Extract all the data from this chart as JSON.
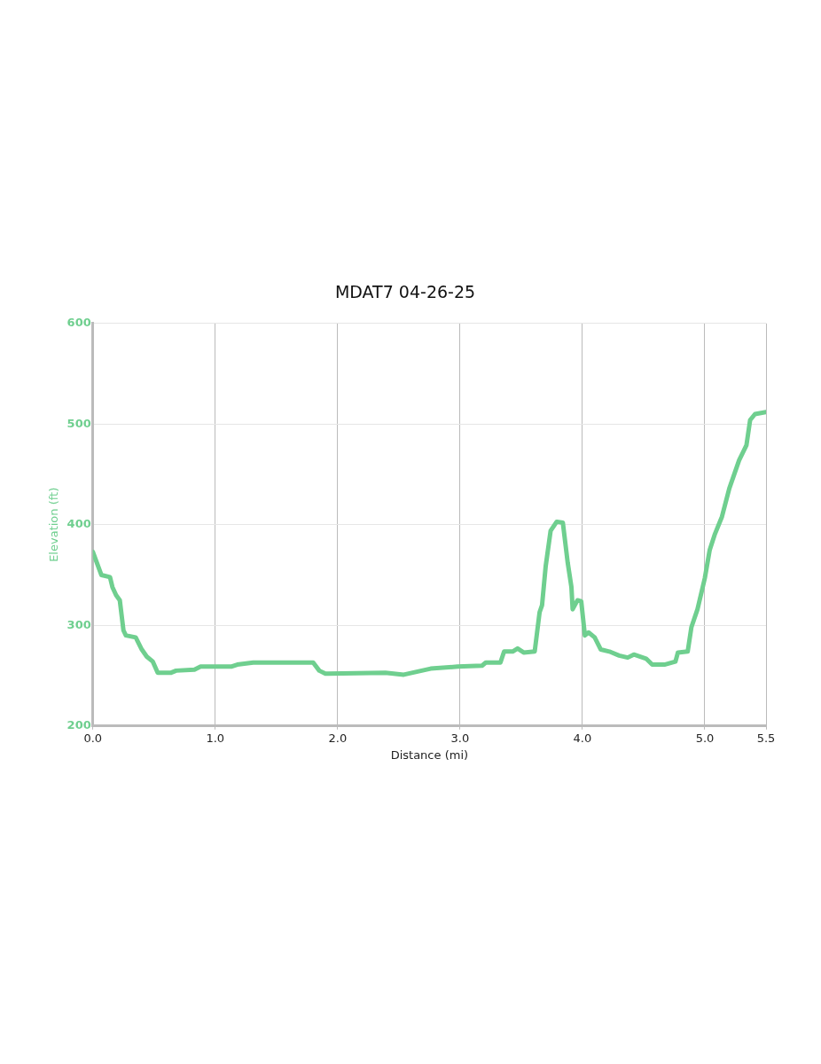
{
  "chart_data": {
    "type": "line",
    "title": "MDAT7 04-26-25",
    "xlabel": "Distance (mi)",
    "ylabel": "Elevation (ft)",
    "x": [
      0,
      0.07,
      0.14,
      0.16,
      0.19,
      0.22,
      0.25,
      0.27,
      0.35,
      0.4,
      0.44,
      0.49,
      0.53,
      0.64,
      0.68,
      0.83,
      0.88,
      1.13,
      1.18,
      1.31,
      1.8,
      1.85,
      1.9,
      1.92,
      2.39,
      2.54,
      2.76,
      2.98,
      3.18,
      3.21,
      3.33,
      3.36,
      3.43,
      3.47,
      3.52,
      3.61,
      3.65,
      3.67,
      3.7,
      3.74,
      3.79,
      3.84,
      3.88,
      3.91,
      3.92,
      3.96,
      3.99,
      4.02,
      4.05,
      4.1,
      4.15,
      4.22,
      4.3,
      4.37,
      4.42,
      4.52,
      4.57,
      4.67,
      4.76,
      4.78,
      4.86,
      4.89,
      4.94,
      5,
      5.04,
      5.08,
      5.14,
      5.2,
      5.28,
      5.34,
      5.37,
      5.41,
      5.5
    ],
    "series": [
      {
        "color": "#6fcf8f",
        "values": [
          373,
          350,
          348,
          338,
          330,
          325,
          295,
          290,
          288,
          276,
          269,
          264,
          253,
          253,
          255,
          256,
          259,
          259,
          261,
          263,
          263,
          255,
          252,
          252,
          253,
          251,
          257,
          259,
          260,
          263,
          263,
          274,
          274,
          277,
          273,
          274,
          313,
          320,
          359,
          394,
          403,
          402,
          362,
          338,
          316,
          325,
          324,
          290,
          293,
          288,
          276,
          274,
          270,
          268,
          271,
          267,
          261,
          261,
          264,
          273,
          274,
          298,
          316,
          347,
          375,
          390,
          408,
          436,
          464,
          479,
          504,
          510,
          512
        ]
      }
    ],
    "xlim": [
      0,
      5.5
    ],
    "xticks": [
      {
        "value": 0,
        "label": "0.0"
      },
      {
        "value": 1,
        "label": "1.0"
      },
      {
        "value": 2,
        "label": "2.0"
      },
      {
        "value": 3,
        "label": "3.0"
      },
      {
        "value": 4,
        "label": "4.0"
      },
      {
        "value": 5,
        "label": "5.0"
      },
      5.5
    ],
    "ylim": [
      200,
      600
    ],
    "yticks": [
      200,
      300,
      400,
      500,
      600
    ],
    "grid": true,
    "legend": false,
    "marker": "none",
    "line_style": "solid"
  }
}
